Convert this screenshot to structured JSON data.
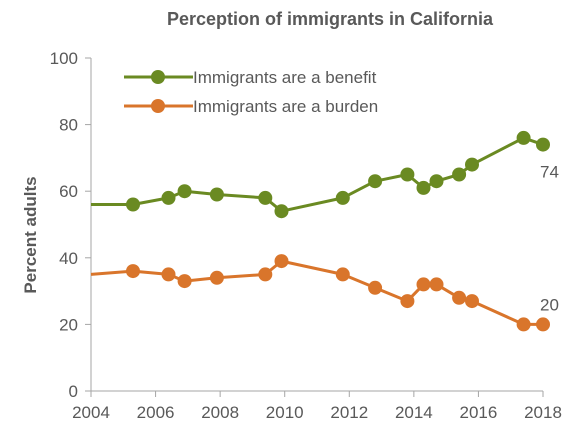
{
  "chart_data": {
    "type": "line",
    "title": "Perception of immigrants in California",
    "xlabel": "",
    "ylabel": "Percent adults",
    "xlim": [
      2004,
      2018
    ],
    "ylim": [
      0,
      100
    ],
    "xticks": [
      2004,
      2006,
      2008,
      2010,
      2012,
      2014,
      2016,
      2018
    ],
    "yticks": [
      0,
      20,
      40,
      60,
      80,
      100
    ],
    "grid": false,
    "legend_position": "top-left",
    "series": [
      {
        "name": "Immigrants are a benefit",
        "color": "#6a8a22",
        "x": [
          2004.0,
          2005.3,
          2006.4,
          2006.9,
          2007.9,
          2009.4,
          2009.9,
          2011.8,
          2012.8,
          2013.8,
          2014.3,
          2014.7,
          2015.4,
          2015.8,
          2017.4,
          2018.0
        ],
        "y": [
          56,
          56,
          58,
          60,
          59,
          58,
          54,
          58,
          63,
          65,
          61,
          63,
          65,
          68,
          76,
          74
        ],
        "markers_from_index": 1,
        "end_label": "74"
      },
      {
        "name": "Immigrants are a burden",
        "color": "#d9752b",
        "x": [
          2004.0,
          2005.3,
          2006.4,
          2006.9,
          2007.9,
          2009.4,
          2009.9,
          2011.8,
          2012.8,
          2013.8,
          2014.3,
          2014.7,
          2015.4,
          2015.8,
          2017.4,
          2018.0
        ],
        "y": [
          35,
          36,
          35,
          33,
          34,
          35,
          39,
          35,
          31,
          27,
          32,
          32,
          28,
          27,
          20,
          20
        ],
        "markers_from_index": 1,
        "end_label": "20"
      }
    ]
  }
}
